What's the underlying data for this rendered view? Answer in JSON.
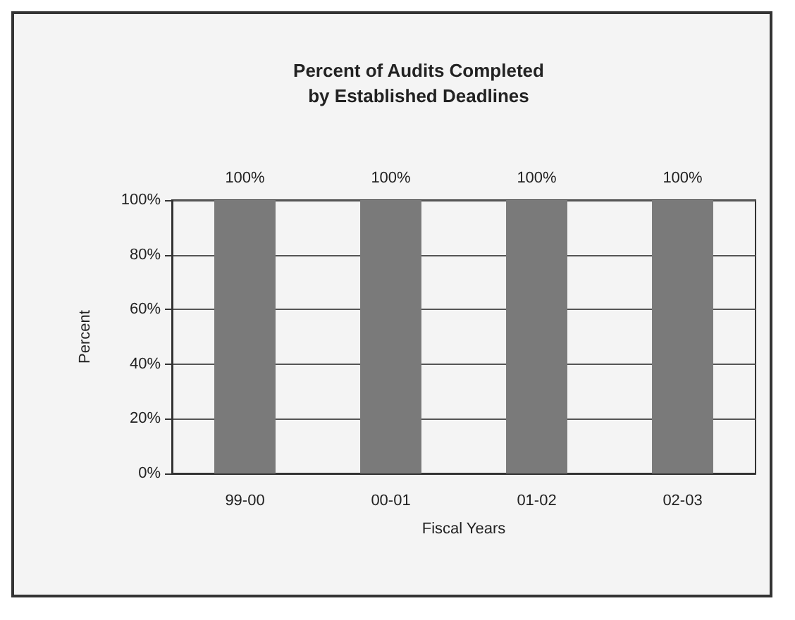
{
  "chart_data": {
    "type": "bar",
    "title": "Percent of Audits Completed\nby Established Deadlines",
    "xlabel": "Fiscal Years",
    "ylabel": "Percent",
    "categories": [
      "99-00",
      "00-01",
      "01-02",
      "02-03"
    ],
    "values": [
      100,
      100,
      100,
      100
    ],
    "color": "#7a7a7a",
    "value_labels": [
      "100%",
      "100%",
      "100%",
      "100%"
    ],
    "ylim": [
      0,
      100
    ],
    "yticks": [
      {
        "value": 0,
        "label": "0%"
      },
      {
        "value": 20,
        "label": "20%"
      },
      {
        "value": 40,
        "label": "40%"
      },
      {
        "value": 60,
        "label": "60%"
      },
      {
        "value": 80,
        "label": "80%"
      },
      {
        "value": 100,
        "label": "100%"
      }
    ],
    "grid": "y"
  }
}
